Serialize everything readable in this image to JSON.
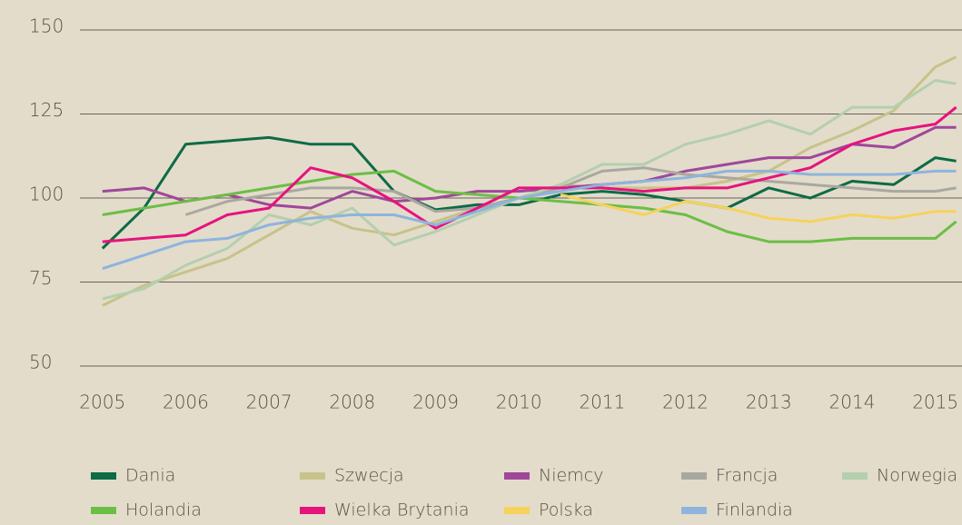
{
  "chart_data": {
    "type": "line",
    "x": [
      2005,
      2005.5,
      2006,
      2006.5,
      2007,
      2007.5,
      2008,
      2008.5,
      2009,
      2009.5,
      2010,
      2010.5,
      2011,
      2011.5,
      2012,
      2012.5,
      2013,
      2013.5,
      2014,
      2014.5,
      2015,
      2015.25
    ],
    "xlim": [
      2004.73,
      2015.32
    ],
    "xticks": [
      2005,
      2006,
      2007,
      2008,
      2009,
      2010,
      2011,
      2012,
      2013,
      2014,
      2015
    ],
    "ylim": [
      50,
      150
    ],
    "yticks": [
      50,
      75,
      100,
      125,
      150
    ],
    "grid": true,
    "series": [
      {
        "name": "Dania",
        "color": "#0d6b45",
        "values": [
          85,
          97,
          116,
          117,
          118,
          116,
          116,
          102,
          96.5,
          98,
          98,
          101,
          102,
          101,
          99,
          97,
          103,
          100,
          105,
          104,
          112,
          111
        ]
      },
      {
        "name": "Szwecja",
        "color": "#c8c28a",
        "values": [
          68,
          74,
          78,
          82,
          89,
          96,
          91,
          89,
          93,
          97,
          100,
          104,
          103,
          103,
          103,
          105,
          108,
          115,
          120,
          126,
          139,
          142
        ]
      },
      {
        "name": "Niemcy",
        "color": "#a0479a",
        "values": [
          102,
          103,
          99,
          101,
          98,
          97,
          102,
          99,
          100,
          102,
          102,
          103,
          104,
          105,
          108,
          110,
          112,
          112,
          116,
          115,
          121,
          121
        ]
      },
      {
        "name": "Francja",
        "color": "#a9a8a0",
        "values": [
          null,
          null,
          95,
          99,
          101,
          103,
          103,
          102,
          96,
          97,
          100,
          103,
          108,
          109,
          107,
          106,
          105,
          104,
          103,
          102,
          102,
          103
        ]
      },
      {
        "name": "Norwegia",
        "color": "#b4cfae",
        "values": [
          70,
          73,
          80,
          85,
          95,
          92,
          97,
          86,
          90,
          95,
          100,
          104,
          110,
          110,
          116,
          119,
          123,
          119,
          127,
          127,
          135,
          134
        ]
      },
      {
        "name": "Holandia",
        "color": "#6cbe45",
        "values": [
          95,
          97,
          99,
          101,
          103,
          105,
          107,
          108,
          102,
          101,
          100,
          99,
          98,
          97,
          95,
          90,
          87,
          87,
          88,
          88,
          88,
          93
        ]
      },
      {
        "name": "Wielka Brytania",
        "color": "#e6137d",
        "values": [
          87,
          88,
          89,
          95,
          97,
          109,
          106,
          99,
          91,
          97,
          103,
          103,
          103,
          102,
          103,
          103,
          106,
          109,
          116,
          120,
          122,
          127
        ]
      },
      {
        "name": "Polska",
        "color": "#f6d25b",
        "values": [
          null,
          null,
          null,
          null,
          null,
          null,
          null,
          null,
          null,
          null,
          null,
          101,
          98,
          95,
          99,
          97,
          94,
          93,
          95,
          94,
          96,
          96
        ]
      },
      {
        "name": "Finlandia",
        "color": "#8eb4dd",
        "values": [
          79,
          83,
          87,
          88,
          92,
          94,
          95,
          95,
          92,
          96,
          100,
          102,
          104,
          105,
          106,
          108,
          108,
          107,
          107,
          107,
          108,
          108
        ]
      }
    ]
  }
}
